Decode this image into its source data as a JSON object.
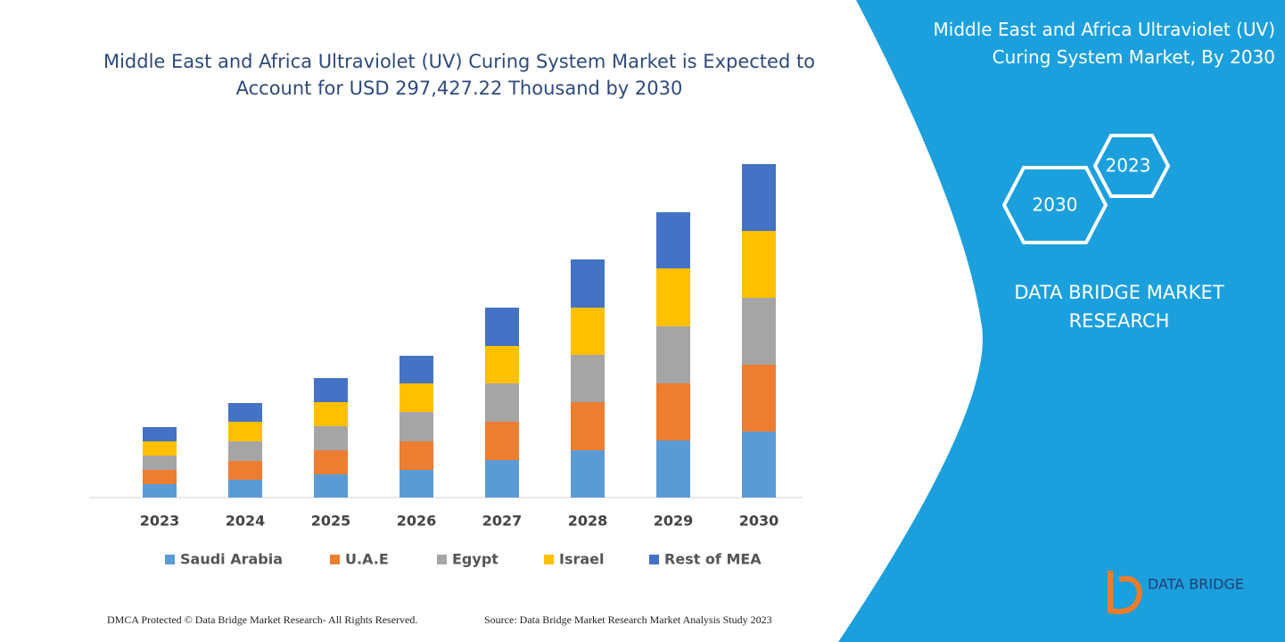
{
  "chart_data": {
    "type": "stacked_bar",
    "title": "Middle East and Africa Ultraviolet (UV) Curing System Market is Expected to Account for USD 297,427.22 Thousand by 2030",
    "categories": [
      "2023",
      "2024",
      "2025",
      "2026",
      "2027",
      "2028",
      "2029",
      "2030"
    ],
    "series": [
      {
        "name": "Saudi Arabia",
        "color": "#5b9bd5",
        "values": [
          15,
          20,
          26,
          31,
          42,
          53,
          64,
          74
        ]
      },
      {
        "name": "U.A.E",
        "color": "#ed7d31",
        "values": [
          16,
          21,
          27,
          32,
          43,
          54,
          64,
          75
        ]
      },
      {
        "name": "Egypt",
        "color": "#a5a5a5",
        "values": [
          16,
          22,
          27,
          33,
          43,
          53,
          64,
          75
        ]
      },
      {
        "name": "Israel",
        "color": "#ffc000",
        "values": [
          16,
          22,
          27,
          32,
          42,
          53,
          65,
          75
        ]
      },
      {
        "name": "Rest of MEA",
        "color": "#4472c4",
        "values": [
          16,
          21,
          27,
          31,
          43,
          54,
          63,
          75
        ]
      }
    ]
  },
  "panel": {
    "title": "Middle East and Africa Ultraviolet (UV) Curing System Market, By 2030",
    "hexagons": [
      "2023",
      "2030"
    ],
    "brand": "DATA BRIDGE MARKET RESEARCH",
    "logo": "DATA BRIDGE"
  },
  "footer": {
    "left": "DMCA Protected © Data Bridge Market Research-  All Rights Reserved.",
    "right": "Source: Data Bridge Market Research  Market Analysis Study 2023"
  }
}
